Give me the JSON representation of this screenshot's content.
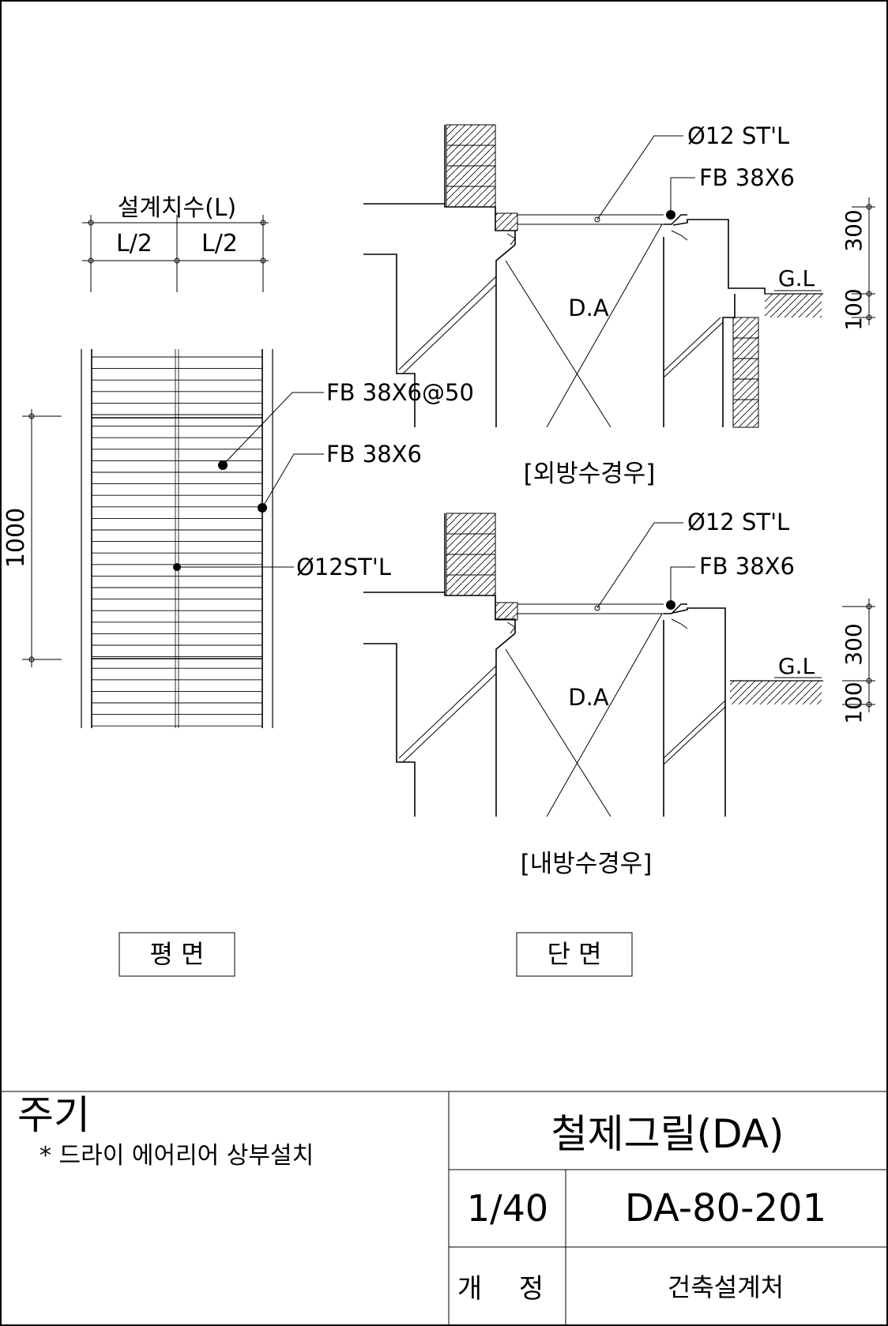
{
  "plan": {
    "dimension_title": "설계치수(L)",
    "half_left": "L/2",
    "half_right": "L/2",
    "height_dim": "1000",
    "callout_bars": "FB 38X6@50",
    "callout_frame": "FB 38X6",
    "callout_rod": "Ø12ST'L",
    "view_label": "평 면"
  },
  "section_outer": {
    "callout_rod": "Ø12 ST'L",
    "callout_frame": "FB 38X6",
    "grade_label": "G.L",
    "dim_300": "300",
    "dim_100": "100",
    "area_label": "D.A",
    "case_label": "[외방수경우]"
  },
  "section_inner": {
    "callout_rod": "Ø12 ST'L",
    "callout_frame": "FB 38X6",
    "grade_label": "G.L",
    "dim_300": "300",
    "dim_100": "100",
    "area_label": "D.A",
    "case_label": "[내방수경우]"
  },
  "section_view_label": "단 면",
  "notes": {
    "title": "주기",
    "item": "* 드라이 에어리어 상부설치"
  },
  "title_block": {
    "drawing_title": "철제그릴(DA)",
    "scale": "1/40",
    "drawing_number": "DA-80-201",
    "revision_label": "개 정",
    "issuer": "건축설계처"
  }
}
